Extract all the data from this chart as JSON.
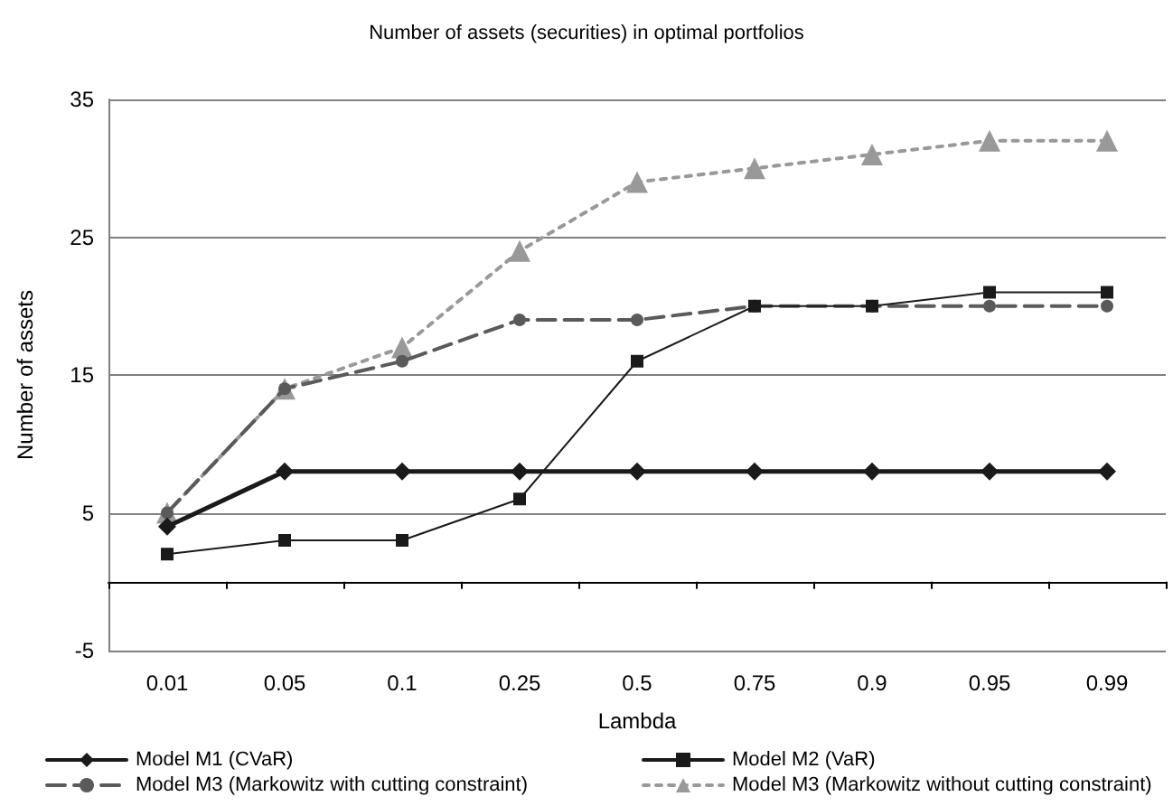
{
  "chart_data": {
    "type": "line",
    "title": "Number of assets (securities) in optimal portfolios",
    "xlabel": "Lambda",
    "ylabel": "Number of assets",
    "categories": [
      "0.01",
      "0.05",
      "0.1",
      "0.25",
      "0.5",
      "0.75",
      "0.9",
      "0.95",
      "0.99"
    ],
    "series": [
      {
        "name": "Model M1 (CVaR)",
        "color": "#1a1a1a",
        "marker": "diamond",
        "line_style": "solid",
        "values": [
          4,
          8,
          8,
          8,
          8,
          8,
          8,
          8,
          8
        ]
      },
      {
        "name": "Model M2 (VaR)",
        "color": "#1a1a1a",
        "marker": "square",
        "line_style": "solid",
        "values": [
          2,
          3,
          3,
          6,
          16,
          20,
          20,
          21,
          21
        ]
      },
      {
        "name": "Model M3 (Markowitz with cutting constraint)",
        "color": "#5a5a5a",
        "marker": "circle",
        "line_style": "dashed",
        "values": [
          5,
          14,
          16,
          19,
          19,
          20,
          20,
          20,
          20
        ]
      },
      {
        "name": "Model M3 (Markowitz without cutting constraint)",
        "color": "#999999",
        "marker": "triangle",
        "line_style": "dotted",
        "values": [
          5,
          14,
          17,
          24,
          29,
          30,
          31,
          32,
          32
        ]
      }
    ],
    "ylim": [
      -5,
      35
    ],
    "yticks": [
      -5,
      5,
      15,
      25,
      35
    ],
    "grid": "y",
    "legend": "bottom"
  }
}
